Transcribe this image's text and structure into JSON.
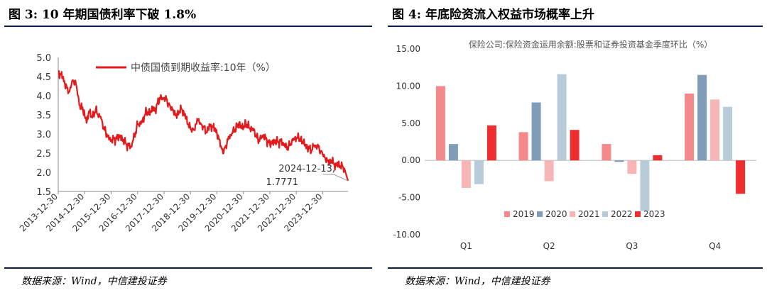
{
  "left": {
    "figure_title": "图 3: 10 年期国债利率下破 1.8%",
    "source": "数据来源：Wind，中信建投证券"
  },
  "right": {
    "figure_title": "图 4:  年底险资流入权益市场概率上升",
    "source": "数据来源：Wind，中信建投证券"
  },
  "chart_data": [
    {
      "type": "line",
      "legend_position": "top-center",
      "grid": false,
      "ylim": [
        1.5,
        5.0
      ],
      "yticks": [
        "5.0",
        "4.5",
        "4.0",
        "3.5",
        "3.0",
        "2.5",
        "2.0",
        "1.5"
      ],
      "xticks": [
        "2013-12-30",
        "2014-12-30",
        "2015-12-30",
        "2016-12-30",
        "2017-12-30",
        "2018-12-30",
        "2019-12-30",
        "2020-12-30",
        "2021-12-30",
        "2022-12-30",
        "2023-12-30"
      ],
      "series": [
        {
          "name": "中债国债到期收益率:10年（%）",
          "color": "#e31a1c",
          "points": [
            [
              "2014-01-01",
              4.65
            ],
            [
              "2014-02-01",
              4.55
            ],
            [
              "2014-03-01",
              4.5
            ],
            [
              "2014-04-01",
              4.3
            ],
            [
              "2014-05-01",
              4.2
            ],
            [
              "2014-06-01",
              4.1
            ],
            [
              "2014-07-01",
              4.3
            ],
            [
              "2014-08-01",
              4.4
            ],
            [
              "2014-09-01",
              4.3
            ],
            [
              "2014-10-01",
              4.0
            ],
            [
              "2014-11-01",
              3.65
            ],
            [
              "2014-12-01",
              3.7
            ],
            [
              "2015-01-01",
              3.45
            ],
            [
              "2015-02-01",
              3.35
            ],
            [
              "2015-03-01",
              3.6
            ],
            [
              "2015-04-01",
              3.45
            ],
            [
              "2015-05-01",
              3.5
            ],
            [
              "2015-06-01",
              3.65
            ],
            [
              "2015-07-01",
              3.5
            ],
            [
              "2015-08-01",
              3.45
            ],
            [
              "2015-09-01",
              3.3
            ],
            [
              "2015-10-01",
              3.1
            ],
            [
              "2015-11-01",
              3.0
            ],
            [
              "2015-12-01",
              2.85
            ],
            [
              "2016-01-01",
              2.85
            ],
            [
              "2016-02-01",
              2.88
            ],
            [
              "2016-03-01",
              2.85
            ],
            [
              "2016-04-01",
              2.9
            ],
            [
              "2016-05-01",
              2.95
            ],
            [
              "2016-06-01",
              2.88
            ],
            [
              "2016-07-01",
              2.8
            ],
            [
              "2016-08-01",
              2.7
            ],
            [
              "2016-09-01",
              2.7
            ],
            [
              "2016-10-01",
              2.68
            ],
            [
              "2016-11-01",
              2.85
            ],
            [
              "2016-12-01",
              3.05
            ],
            [
              "2017-01-01",
              3.25
            ],
            [
              "2017-02-01",
              3.3
            ],
            [
              "2017-03-01",
              3.3
            ],
            [
              "2017-04-01",
              3.45
            ],
            [
              "2017-05-01",
              3.6
            ],
            [
              "2017-06-01",
              3.55
            ],
            [
              "2017-07-01",
              3.6
            ],
            [
              "2017-08-01",
              3.65
            ],
            [
              "2017-09-01",
              3.62
            ],
            [
              "2017-10-01",
              3.8
            ],
            [
              "2017-11-01",
              3.95
            ],
            [
              "2017-12-01",
              3.9
            ],
            [
              "2018-01-01",
              3.95
            ],
            [
              "2018-02-01",
              3.9
            ],
            [
              "2018-03-01",
              3.8
            ],
            [
              "2018-04-01",
              3.65
            ],
            [
              "2018-05-01",
              3.65
            ],
            [
              "2018-06-01",
              3.5
            ],
            [
              "2018-07-01",
              3.5
            ],
            [
              "2018-08-01",
              3.6
            ],
            [
              "2018-09-01",
              3.65
            ],
            [
              "2018-10-01",
              3.55
            ],
            [
              "2018-11-01",
              3.4
            ],
            [
              "2018-12-01",
              3.25
            ],
            [
              "2019-01-01",
              3.12
            ],
            [
              "2019-02-01",
              3.15
            ],
            [
              "2019-03-01",
              3.1
            ],
            [
              "2019-04-01",
              3.4
            ],
            [
              "2019-05-01",
              3.3
            ],
            [
              "2019-06-01",
              3.25
            ],
            [
              "2019-07-01",
              3.18
            ],
            [
              "2019-08-01",
              3.05
            ],
            [
              "2019-09-01",
              3.12
            ],
            [
              "2019-10-01",
              3.25
            ],
            [
              "2019-11-01",
              3.18
            ],
            [
              "2019-12-01",
              3.15
            ],
            [
              "2020-01-01",
              3.0
            ],
            [
              "2020-02-01",
              2.85
            ],
            [
              "2020-03-01",
              2.65
            ],
            [
              "2020-04-01",
              2.5
            ],
            [
              "2020-05-01",
              2.7
            ],
            [
              "2020-06-01",
              2.85
            ],
            [
              "2020-07-01",
              2.98
            ],
            [
              "2020-08-01",
              3.02
            ],
            [
              "2020-09-01",
              3.12
            ],
            [
              "2020-10-01",
              3.18
            ],
            [
              "2020-11-01",
              3.3
            ],
            [
              "2020-12-01",
              3.15
            ],
            [
              "2021-01-01",
              3.18
            ],
            [
              "2021-02-01",
              3.28
            ],
            [
              "2021-03-01",
              3.22
            ],
            [
              "2021-04-01",
              3.15
            ],
            [
              "2021-05-01",
              3.1
            ],
            [
              "2021-06-01",
              3.1
            ],
            [
              "2021-07-01",
              2.9
            ],
            [
              "2021-08-01",
              2.85
            ],
            [
              "2021-09-01",
              2.88
            ],
            [
              "2021-10-01",
              2.98
            ],
            [
              "2021-11-01",
              2.88
            ],
            [
              "2021-12-01",
              2.8
            ],
            [
              "2022-01-01",
              2.72
            ],
            [
              "2022-02-01",
              2.8
            ],
            [
              "2022-03-01",
              2.8
            ],
            [
              "2022-04-01",
              2.82
            ],
            [
              "2022-05-01",
              2.76
            ],
            [
              "2022-06-01",
              2.82
            ],
            [
              "2022-07-01",
              2.78
            ],
            [
              "2022-08-01",
              2.65
            ],
            [
              "2022-09-01",
              2.66
            ],
            [
              "2022-10-01",
              2.7
            ],
            [
              "2022-11-01",
              2.85
            ],
            [
              "2022-12-01",
              2.85
            ],
            [
              "2023-01-01",
              2.9
            ],
            [
              "2023-02-01",
              2.9
            ],
            [
              "2023-03-01",
              2.86
            ],
            [
              "2023-04-01",
              2.8
            ],
            [
              "2023-05-01",
              2.7
            ],
            [
              "2023-06-01",
              2.65
            ],
            [
              "2023-07-01",
              2.62
            ],
            [
              "2023-08-01",
              2.58
            ],
            [
              "2023-09-01",
              2.68
            ],
            [
              "2023-10-01",
              2.7
            ],
            [
              "2023-11-01",
              2.66
            ],
            [
              "2023-12-01",
              2.56
            ],
            [
              "2024-01-01",
              2.45
            ],
            [
              "2024-02-01",
              2.38
            ],
            [
              "2024-03-01",
              2.3
            ],
            [
              "2024-04-01",
              2.27
            ],
            [
              "2024-05-01",
              2.3
            ],
            [
              "2024-06-01",
              2.22
            ],
            [
              "2024-07-01",
              2.18
            ],
            [
              "2024-08-01",
              2.22
            ],
            [
              "2024-09-01",
              2.15
            ],
            [
              "2024-10-01",
              2.15
            ],
            [
              "2024-11-01",
              2.05
            ],
            [
              "2024-12-13",
              1.7771
            ]
          ]
        }
      ],
      "annotation": {
        "text_line1": "2024-12-13,",
        "text_line2": "1.7771",
        "x": "2024-12-13",
        "y": 1.7771
      }
    },
    {
      "type": "bar",
      "title": "保险公司:保险资金运用余额:股票和证券投资基金季度环比（%）",
      "legend_position": "bottom",
      "grid": false,
      "ylim": [
        -10,
        15
      ],
      "yticks": [
        "15.00",
        "10.00",
        "5.00",
        "0.00",
        "-5.00",
        "-10.00"
      ],
      "categories": [
        "Q1",
        "Q2",
        "Q3",
        "Q4"
      ],
      "series": [
        {
          "name": "2019",
          "color": "#f4888b",
          "values": [
            10.0,
            3.8,
            2.2,
            9.0
          ]
        },
        {
          "name": "2020",
          "color": "#7f9db8",
          "values": [
            2.2,
            7.8,
            -0.2,
            11.5
          ]
        },
        {
          "name": "2021",
          "color": "#f8b5b5",
          "values": [
            -3.7,
            -2.8,
            -1.8,
            8.2
          ]
        },
        {
          "name": "2022",
          "color": "#b8cbd8",
          "values": [
            -3.2,
            11.6,
            -6.8,
            7.2
          ]
        },
        {
          "name": "2023",
          "color": "#ee2e2e",
          "values": [
            4.7,
            4.1,
            0.7,
            -4.5
          ]
        }
      ]
    }
  ]
}
